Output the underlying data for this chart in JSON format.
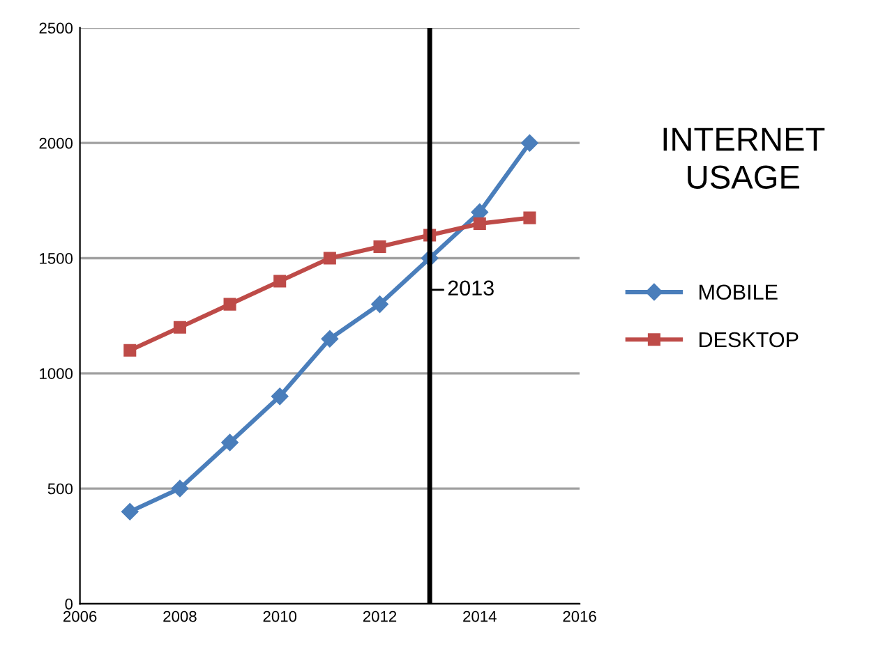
{
  "chart_data": {
    "type": "line",
    "title": "INTERNET\nUSAGE",
    "x": [
      2007,
      2008,
      2009,
      2010,
      2011,
      2012,
      2013,
      2014,
      2015
    ],
    "series": [
      {
        "name": "MOBILE",
        "color": "#4a7ebb",
        "marker": "diamond",
        "values": [
          400,
          500,
          700,
          900,
          1150,
          1300,
          1500,
          1700,
          2000
        ]
      },
      {
        "name": "DESKTOP",
        "color": "#be4b48",
        "marker": "square",
        "values": [
          1100,
          1200,
          1300,
          1400,
          1500,
          1550,
          1600,
          1650,
          1675
        ]
      }
    ],
    "xlim": [
      2006,
      2016
    ],
    "xticks": [
      2006,
      2008,
      2010,
      2012,
      2014,
      2016
    ],
    "ylim": [
      0,
      2500
    ],
    "yticks": [
      0,
      500,
      1000,
      1500,
      2000,
      2500
    ],
    "grid": "y",
    "legend": "right",
    "ref_lines": [
      {
        "axis": "x",
        "value": 2013,
        "label": "2013",
        "color": "#000000"
      }
    ]
  }
}
